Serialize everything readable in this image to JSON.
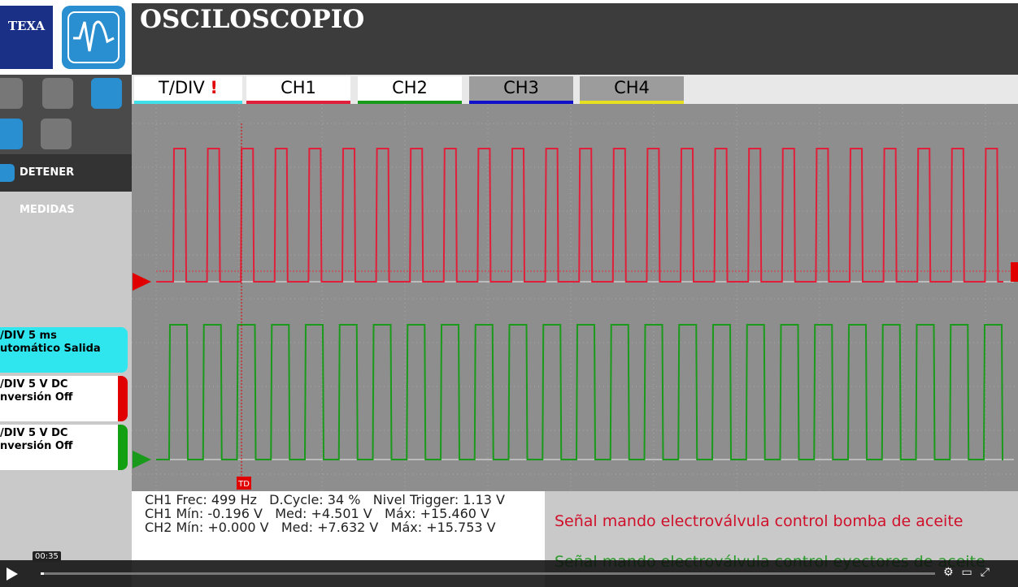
{
  "header": {
    "logo": "TEXA",
    "title": "OSCILOSCOPIO"
  },
  "tabs": [
    "T/DIV",
    "CH1",
    "CH2",
    "CH3",
    "CH4"
  ],
  "sidebar": {
    "button": "DETENER MEDIDAS",
    "panels": [
      [
        "/DIV  5 ms",
        "utomático  Salida"
      ],
      [
        "/DIV  5 V  DC",
        "nversión  Off"
      ],
      [
        "/DIV  5 V  DC",
        "nversión  Off"
      ]
    ]
  },
  "trigger_marker": "TD",
  "measurements": [
    [
      "CH1 Frec: 499 Hz",
      "D.Cycle: 34 %",
      "Nivel Trigger: 1.13 V"
    ],
    [
      "CH1 Mín: -0.196 V",
      "Med: +4.501 V",
      "Máx: +15.460 V"
    ],
    [
      "CH2 Mín: +0.000 V",
      "Med: +7.632 V",
      "Máx: +15.753 V"
    ]
  ],
  "captions": [
    "Señal mando electroválvula control bomba de aceite",
    "Señal mando electroválvula control eyectores de aceite"
  ],
  "video": {
    "time": "00:35"
  }
}
